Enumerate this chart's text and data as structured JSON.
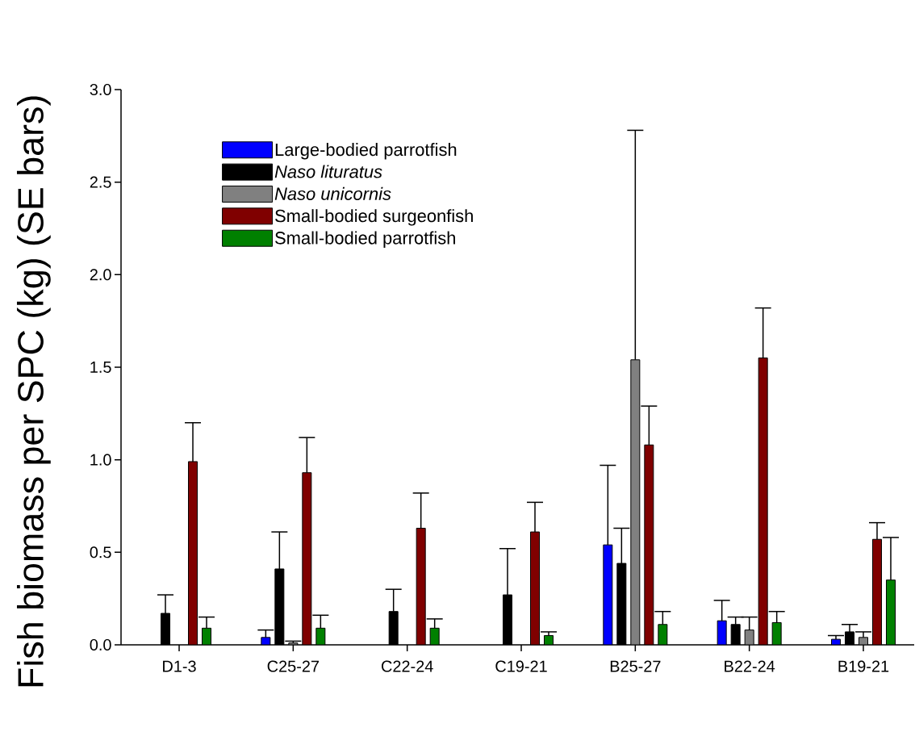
{
  "chart_data": {
    "type": "bar",
    "ylabel": "Fish biomass per SPC (kg) (SE bars)",
    "categories": [
      "D1-3",
      "C25-27",
      "C22-24",
      "C19-21",
      "B25-27",
      "B22-24",
      "B19-21"
    ],
    "series": [
      {
        "name": "Large-bodied parrotfish",
        "color": "#0000ff",
        "values": [
          null,
          0.04,
          null,
          null,
          0.54,
          0.13,
          0.03
        ],
        "errors": [
          null,
          0.04,
          null,
          null,
          0.43,
          0.11,
          0.02
        ]
      },
      {
        "name": "*Naso lituratus*",
        "color": "#000000",
        "values": [
          0.17,
          0.41,
          0.18,
          0.27,
          0.44,
          0.11,
          0.07
        ],
        "errors": [
          0.1,
          0.2,
          0.12,
          0.25,
          0.19,
          0.04,
          0.04
        ]
      },
      {
        "name": "*Naso unicornis*",
        "color": "#808080",
        "values": [
          null,
          0.01,
          null,
          null,
          1.54,
          0.08,
          0.04
        ],
        "errors": [
          null,
          0.01,
          null,
          null,
          1.24,
          0.07,
          0.03
        ]
      },
      {
        "name": "Small-bodied surgeonfish",
        "color": "#800000",
        "values": [
          0.99,
          0.93,
          0.63,
          0.61,
          1.08,
          1.55,
          0.57
        ],
        "errors": [
          0.21,
          0.19,
          0.19,
          0.16,
          0.21,
          0.27,
          0.09
        ]
      },
      {
        "name": "Small-bodied parrotfish",
        "color": "#008000",
        "values": [
          0.09,
          0.09,
          0.09,
          0.05,
          0.11,
          0.12,
          0.35
        ],
        "errors": [
          0.06,
          0.07,
          0.05,
          0.02,
          0.07,
          0.06,
          0.23
        ]
      }
    ],
    "ylim": [
      0,
      3.0
    ],
    "yticks": [
      {
        "value": 0,
        "label": "0.0"
      },
      {
        "value": 0.5,
        "label": "0.5"
      },
      {
        "value": 1.0,
        "label": "1.0"
      },
      {
        "value": 1.5,
        "label": "1.5"
      },
      {
        "value": 2.0,
        "label": "2.0"
      },
      {
        "value": 2.5,
        "label": "2.5"
      },
      {
        "value": 3.0,
        "label": "3.0"
      }
    ],
    "legend": "top left"
  }
}
